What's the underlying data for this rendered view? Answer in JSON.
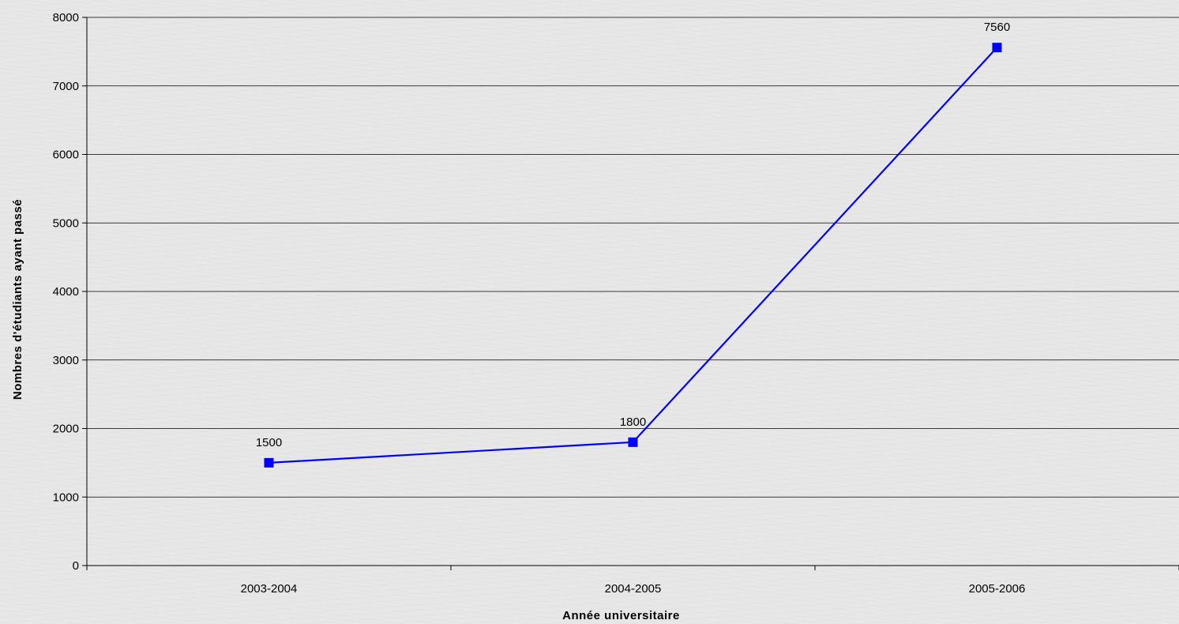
{
  "chart_data": {
    "type": "line",
    "categories": [
      "2003-2004",
      "2004-2005",
      "2005-2006"
    ],
    "series": [
      {
        "values": [
          1500,
          1800,
          7560
        ],
        "color": "#0000ff",
        "marker": "square"
      }
    ],
    "data_labels": [
      "1500",
      "1800",
      "7560"
    ],
    "xlabel": "Année universitaire",
    "ylabel": "Nombres d'étudiants ayant passé",
    "ylim": [
      0,
      8000
    ],
    "yticks": [
      0,
      1000,
      2000,
      3000,
      4000,
      5000,
      6000,
      7000,
      8000
    ],
    "grid": true,
    "gridline_color": "#000000"
  }
}
